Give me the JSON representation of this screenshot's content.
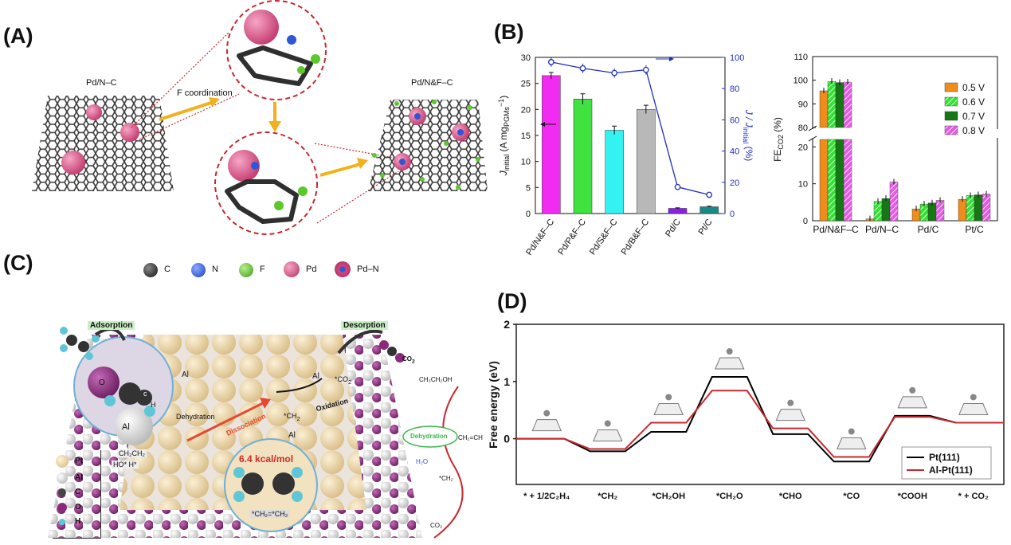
{
  "panels": {
    "a": "(A)",
    "b": "(B)",
    "c": "(C)",
    "d": "(D)"
  },
  "panel_a": {
    "left_sheet_label": "Pd/N–C",
    "arrow_label": "F coordination",
    "right_sheet_label": "Pd/N&F–C"
  },
  "legend_atoms": [
    {
      "label": "C",
      "color": "#333333",
      "icon": "carbon-sphere"
    },
    {
      "label": "N",
      "color": "#2f56d6",
      "icon": "nitrogen-sphere"
    },
    {
      "label": "F",
      "color": "#5cc82a",
      "icon": "fluorine-sphere"
    },
    {
      "label": "Pd",
      "color": "#d6457a",
      "icon": "pd-cluster"
    },
    {
      "label": "Pd–N",
      "color": "#c43f86",
      "icon": "pd-n-cluster"
    }
  ],
  "panel_c": {
    "adsorption": "Adsorption",
    "desorption": "Desorption",
    "co2": "CO",
    "co2_sub": "2",
    "dehydration": "Dehydration",
    "dissociation": "Dissociation",
    "oxidation": "Oxidation",
    "ch2": "*CH",
    "ch2_sub": "2",
    "co2_star": "*CO",
    "al1": "Al",
    "al2": "Al",
    "al3": "Al",
    "al_circle": "Al",
    "o_label": "O",
    "h_label": "H",
    "c_label": "c",
    "ethanol_surface": "CH₂CH₂",
    "ho_h": "HO*   H*",
    "barrier": "6.4 kcal/mol",
    "ch2ch2": "*CH₂=*CH₂",
    "path_ch3ch2oh": "CH₃CH₂OH",
    "path_dehydration": "Dehydration",
    "path_ch2ch": "CH₂=CH",
    "path_h2o": "H₂O",
    "path_ch2": "*CH₂",
    "path_co2": "CO₂",
    "legend": [
      {
        "label": "Pt",
        "color": "#f2dcae",
        "icon": "pt-sphere"
      },
      {
        "label": "Al",
        "color": "#e4e4e4",
        "icon": "al-sphere"
      },
      {
        "label": "C",
        "color": "#444444",
        "icon": "c-sphere"
      },
      {
        "label": "O",
        "color": "#8b2a7a",
        "icon": "o-sphere"
      },
      {
        "label": "H",
        "color": "#5fc6d8",
        "icon": "h-sphere"
      }
    ]
  },
  "chart_data": [
    {
      "type": "bar",
      "id": "B-left",
      "categories": [
        "Pd/N&F–C",
        "Pd/P&F–C",
        "Pd/S&F–C",
        "Pd/B&F–C",
        "Pd/C",
        "Pt/C"
      ],
      "values": [
        26.5,
        22.0,
        16.0,
        20.0,
        1.0,
        1.3
      ],
      "errors": [
        0.6,
        1.0,
        0.8,
        0.8,
        0.1,
        0.1
      ],
      "colors": [
        "#f22bf2",
        "#3fe23f",
        "#34f2f2",
        "#b8b8b8",
        "#8a1fe8",
        "#178a87"
      ],
      "ylabel": "J",
      "ylabel_sub": "initial",
      "ylabel_rest": " (A mg",
      "ylabel_sub2": "PGMs",
      "ylabel_sup": "−1",
      "ylabel_end": ")",
      "ylim": [
        0,
        30
      ],
      "yticks": [
        0,
        5,
        10,
        15,
        20,
        25,
        30
      ],
      "secondary": {
        "label": "J / J",
        "label_sub": "initial",
        "label_end": " (%)",
        "values": [
          97,
          93,
          90,
          92,
          17,
          12
        ],
        "errors": [
          3,
          3,
          3,
          3,
          1,
          1
        ],
        "ylim": [
          0,
          100
        ],
        "yticks": [
          0,
          20,
          40,
          60,
          80,
          100
        ],
        "color": "#1e2fbf"
      }
    },
    {
      "type": "bar",
      "id": "B-right",
      "categories": [
        "Pd/N&F–C",
        "Pd/N–C",
        "Pd/C",
        "Pt/C"
      ],
      "series": [
        {
          "name": "0.5 V",
          "values": [
            95.5,
            0.5,
            3.2,
            5.8
          ],
          "color": "#ef8c1a",
          "pattern": "solid"
        },
        {
          "name": "0.6 V",
          "values": [
            99.5,
            5.2,
            4.5,
            6.8
          ],
          "color": "#33e233",
          "pattern": "hatch"
        },
        {
          "name": "0.7 V",
          "values": [
            99.0,
            6.0,
            4.8,
            7.0
          ],
          "color": "#157815",
          "pattern": "solid"
        },
        {
          "name": "0.8 V",
          "values": [
            99.2,
            10.5,
            5.5,
            7.2
          ],
          "color": "#e25ce2",
          "pattern": "hatch"
        }
      ],
      "ylabel": "FE",
      "ylabel_sub": "CO2",
      "ylabel_end": " (%)",
      "ylim_lower": [
        0,
        22
      ],
      "ylim_upper": [
        80,
        110
      ],
      "yticks": [
        0,
        10,
        20,
        80,
        90,
        100,
        110
      ],
      "legend_position": "top-right"
    },
    {
      "type": "line",
      "id": "D",
      "categories": [
        "* + 1/2C₂H₄",
        "*CH₂",
        "*CH₂OH",
        "*CH₂O",
        "*CHO",
        "*CO",
        "*COOH",
        "* + CO₂"
      ],
      "series": [
        {
          "name": "Pt(111)",
          "values": [
            0.0,
            -0.22,
            0.12,
            1.08,
            0.08,
            -0.4,
            0.4,
            0.28
          ],
          "color": "#000000"
        },
        {
          "name": "Al-Pt(111)",
          "values": [
            0.0,
            -0.18,
            0.28,
            0.84,
            0.18,
            -0.32,
            0.38,
            0.28
          ],
          "color": "#c8282d"
        }
      ],
      "ylabel": "Free energy (eV)",
      "ylim": [
        -0.8,
        2
      ],
      "yticks": [
        0,
        1,
        2
      ],
      "legend_position": "bottom-right"
    }
  ]
}
